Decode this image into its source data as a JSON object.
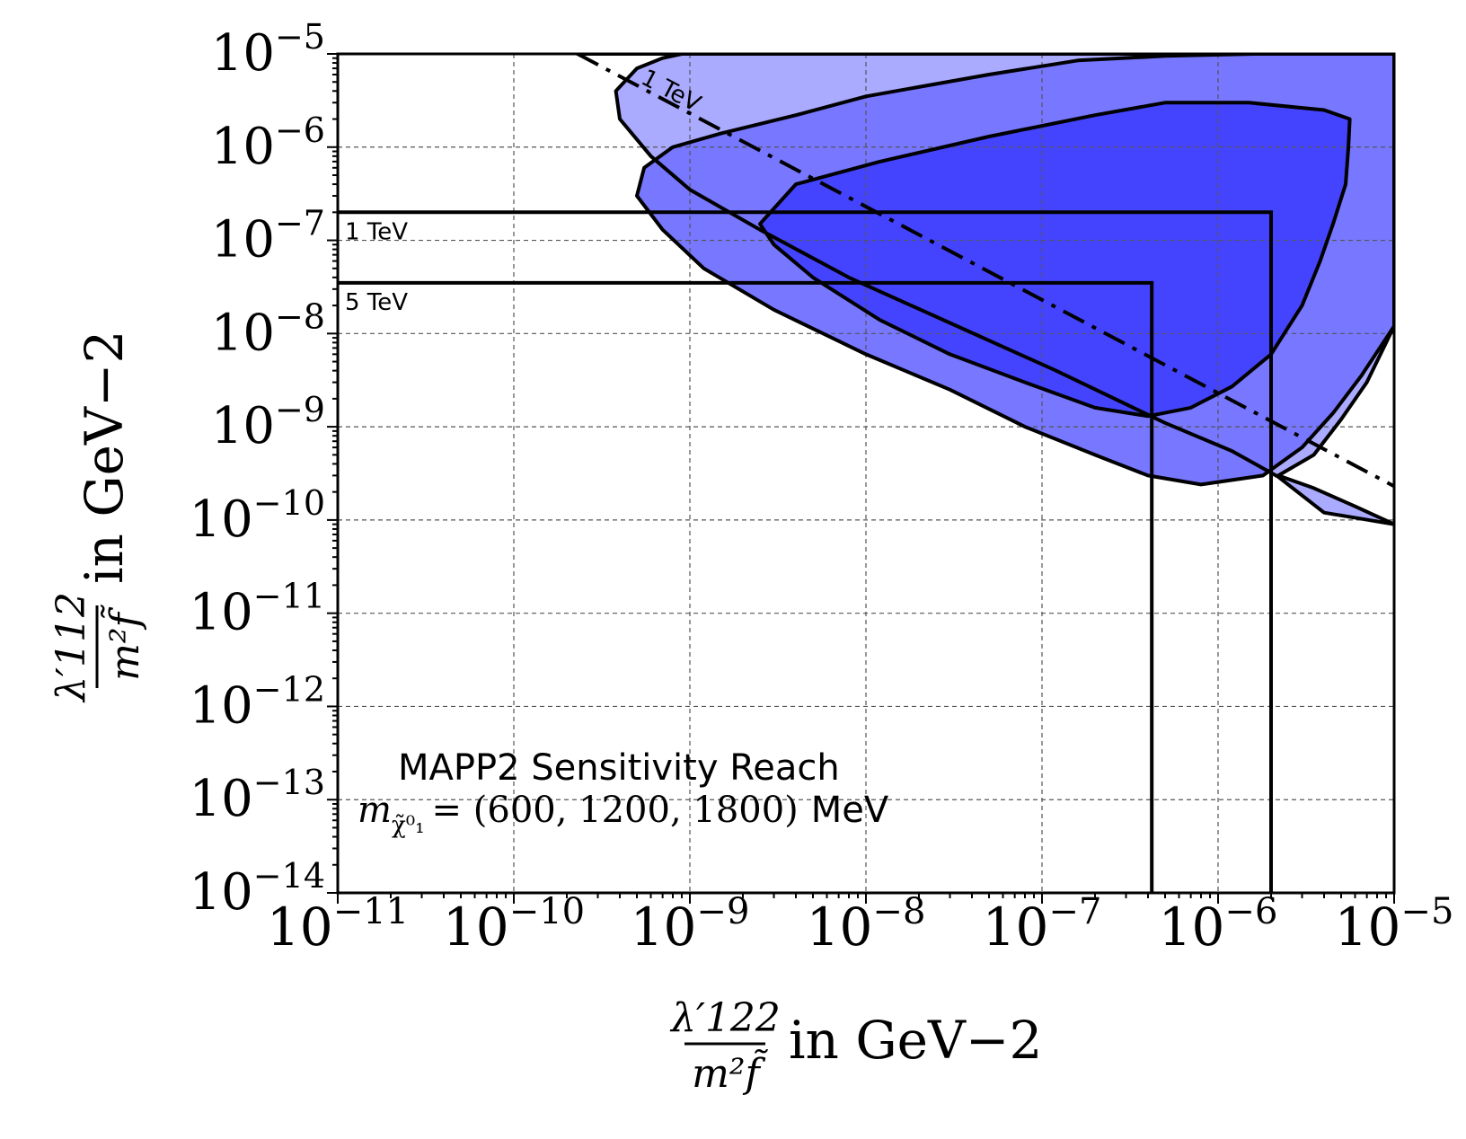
{
  "chart_data": {
    "type": "area",
    "title": "",
    "x_scale": "log",
    "y_scale": "log",
    "xlim": [
      1e-11,
      1e-05
    ],
    "ylim": [
      1e-14,
      1e-05
    ],
    "grid": true,
    "xlabel": {
      "numerator": "λ′122",
      "denominator": "m²f̃",
      "unit": "in GeV−2"
    },
    "ylabel": {
      "numerator": "λ′112",
      "denominator": "m²f̃",
      "unit": "in GeV−2"
    },
    "x_ticks": [
      {
        "value": 1e-11,
        "base": "10",
        "exp": "−11"
      },
      {
        "value": 1e-10,
        "base": "10",
        "exp": "−10"
      },
      {
        "value": 1e-09,
        "base": "10",
        "exp": "−9"
      },
      {
        "value": 1e-08,
        "base": "10",
        "exp": "−8"
      },
      {
        "value": 1e-07,
        "base": "10",
        "exp": "−7"
      },
      {
        "value": 1e-06,
        "base": "10",
        "exp": "−6"
      },
      {
        "value": 1e-05,
        "base": "10",
        "exp": "−5"
      }
    ],
    "y_ticks": [
      {
        "value": 1e-05,
        "base": "10",
        "exp": "−5"
      },
      {
        "value": 1e-06,
        "base": "10",
        "exp": "−6"
      },
      {
        "value": 1e-07,
        "base": "10",
        "exp": "−7"
      },
      {
        "value": 1e-08,
        "base": "10",
        "exp": "−8"
      },
      {
        "value": 1e-09,
        "base": "10",
        "exp": "−9"
      },
      {
        "value": 1e-10,
        "base": "10",
        "exp": "−10"
      },
      {
        "value": 1e-11,
        "base": "10",
        "exp": "−11"
      },
      {
        "value": 1e-12,
        "base": "10",
        "exp": "−12"
      },
      {
        "value": 1e-13,
        "base": "10",
        "exp": "−13"
      },
      {
        "value": 1e-14,
        "base": "10",
        "exp": "−14"
      }
    ],
    "annotation": {
      "line1": "MAPP2 Sensitivity Reach",
      "line2_symbol": "m",
      "line2_sub": "χ̃⁰₁",
      "line2_values": "= (600, 1200, 1800)",
      "line2_unit": "MeV"
    },
    "series": [
      {
        "id": "m600",
        "fill": "#aaaaff",
        "polygon": [
          [
            2.3e-10,
            1e-05
          ],
          [
            1e-05,
            1e-05
          ],
          [
            1e-05,
            1.2e-08
          ],
          [
            7e-06,
            3e-09
          ],
          [
            5e-06,
            1.2e-09
          ],
          [
            3.5e-06,
            5e-10
          ],
          [
            2.2e-06,
            3e-10
          ],
          [
            3.5e-06,
            2.2e-10
          ],
          [
            6e-06,
            1.4e-10
          ],
          [
            1e-05,
            9e-11
          ],
          [
            1e-05,
            9e-11
          ],
          [
            4e-06,
            1.2e-10
          ],
          [
            2.2e-06,
            2.9e-10
          ],
          [
            1.2e-06,
            5.5e-10
          ],
          [
            5e-07,
            1.1e-09
          ],
          [
            1.2e-07,
            4e-09
          ],
          [
            3e-08,
            1.3e-08
          ],
          [
            8e-09,
            4e-08
          ],
          [
            2.5e-09,
            1.3e-07
          ],
          [
            1e-09,
            3.5e-07
          ],
          [
            6e-10,
            8e-07
          ],
          [
            4e-10,
            2e-06
          ],
          [
            3.8e-10,
            4e-06
          ],
          [
            5e-10,
            7e-06
          ],
          [
            7e-10,
            9e-06
          ],
          [
            9e-10,
            1e-05
          ]
        ]
      },
      {
        "id": "m1200",
        "fill": "#7777ff",
        "polygon": [
          [
            1.6e-06,
            1e-05
          ],
          [
            1e-05,
            1e-05
          ],
          [
            1e-05,
            1.2e-08
          ],
          [
            6.5e-06,
            3.5e-09
          ],
          [
            4.5e-06,
            1.4e-09
          ],
          [
            3e-06,
            6e-10
          ],
          [
            1.8e-06,
            3e-10
          ],
          [
            8e-07,
            2.4e-10
          ],
          [
            4e-07,
            3e-10
          ],
          [
            2e-07,
            5e-10
          ],
          [
            8e-08,
            1e-09
          ],
          [
            3e-08,
            2.5e-09
          ],
          [
            1e-08,
            6e-09
          ],
          [
            3e-09,
            1.8e-08
          ],
          [
            1.2e-09,
            5e-08
          ],
          [
            7e-10,
            1.3e-07
          ],
          [
            5e-10,
            3e-07
          ],
          [
            5.5e-10,
            6e-07
          ],
          [
            8e-10,
            1e-06
          ],
          [
            1.5e-09,
            1.4e-06
          ],
          [
            4e-09,
            2.2e-06
          ],
          [
            1e-08,
            3.5e-06
          ],
          [
            5e-08,
            6e-06
          ],
          [
            1.6e-07,
            8.5e-06
          ],
          [
            5e-07,
            9.5e-06
          ]
        ]
      },
      {
        "id": "m1800",
        "fill": "#4444ff",
        "polygon": [
          [
            2.5e-09,
            1.5e-07
          ],
          [
            4e-09,
            4e-07
          ],
          [
            1.2e-08,
            7e-07
          ],
          [
            5e-08,
            1.3e-06
          ],
          [
            2e-07,
            2.2e-06
          ],
          [
            5e-07,
            3e-06
          ],
          [
            1.5e-06,
            3e-06
          ],
          [
            4e-06,
            2.5e-06
          ],
          [
            5.6e-06,
            2e-06
          ],
          [
            5.5e-06,
            1e-06
          ],
          [
            5.3e-06,
            4e-07
          ],
          [
            4.5e-06,
            1.5e-07
          ],
          [
            3.8e-06,
            6e-08
          ],
          [
            3e-06,
            2e-08
          ],
          [
            2e-06,
            6e-09
          ],
          [
            1.2e-06,
            2.7e-09
          ],
          [
            7e-07,
            1.6e-09
          ],
          [
            4e-07,
            1.3e-09
          ],
          [
            2e-07,
            1.6e-09
          ],
          [
            8e-08,
            3e-09
          ],
          [
            3e-08,
            6e-09
          ],
          [
            1.2e-08,
            1.4e-08
          ],
          [
            5e-09,
            4e-08
          ],
          [
            3e-09,
            9e-08
          ]
        ]
      }
    ],
    "dashdot_line": {
      "label": "1 TeV",
      "points": [
        [
          2.3e-10,
          1e-05
        ],
        [
          1e-05,
          2.3e-10
        ]
      ]
    },
    "limits": [
      {
        "label": "1 TeV",
        "y": 2e-07,
        "x": 2e-06
      },
      {
        "label": "5 TeV",
        "y": 3.5e-08,
        "x": 4.2e-07
      }
    ]
  }
}
